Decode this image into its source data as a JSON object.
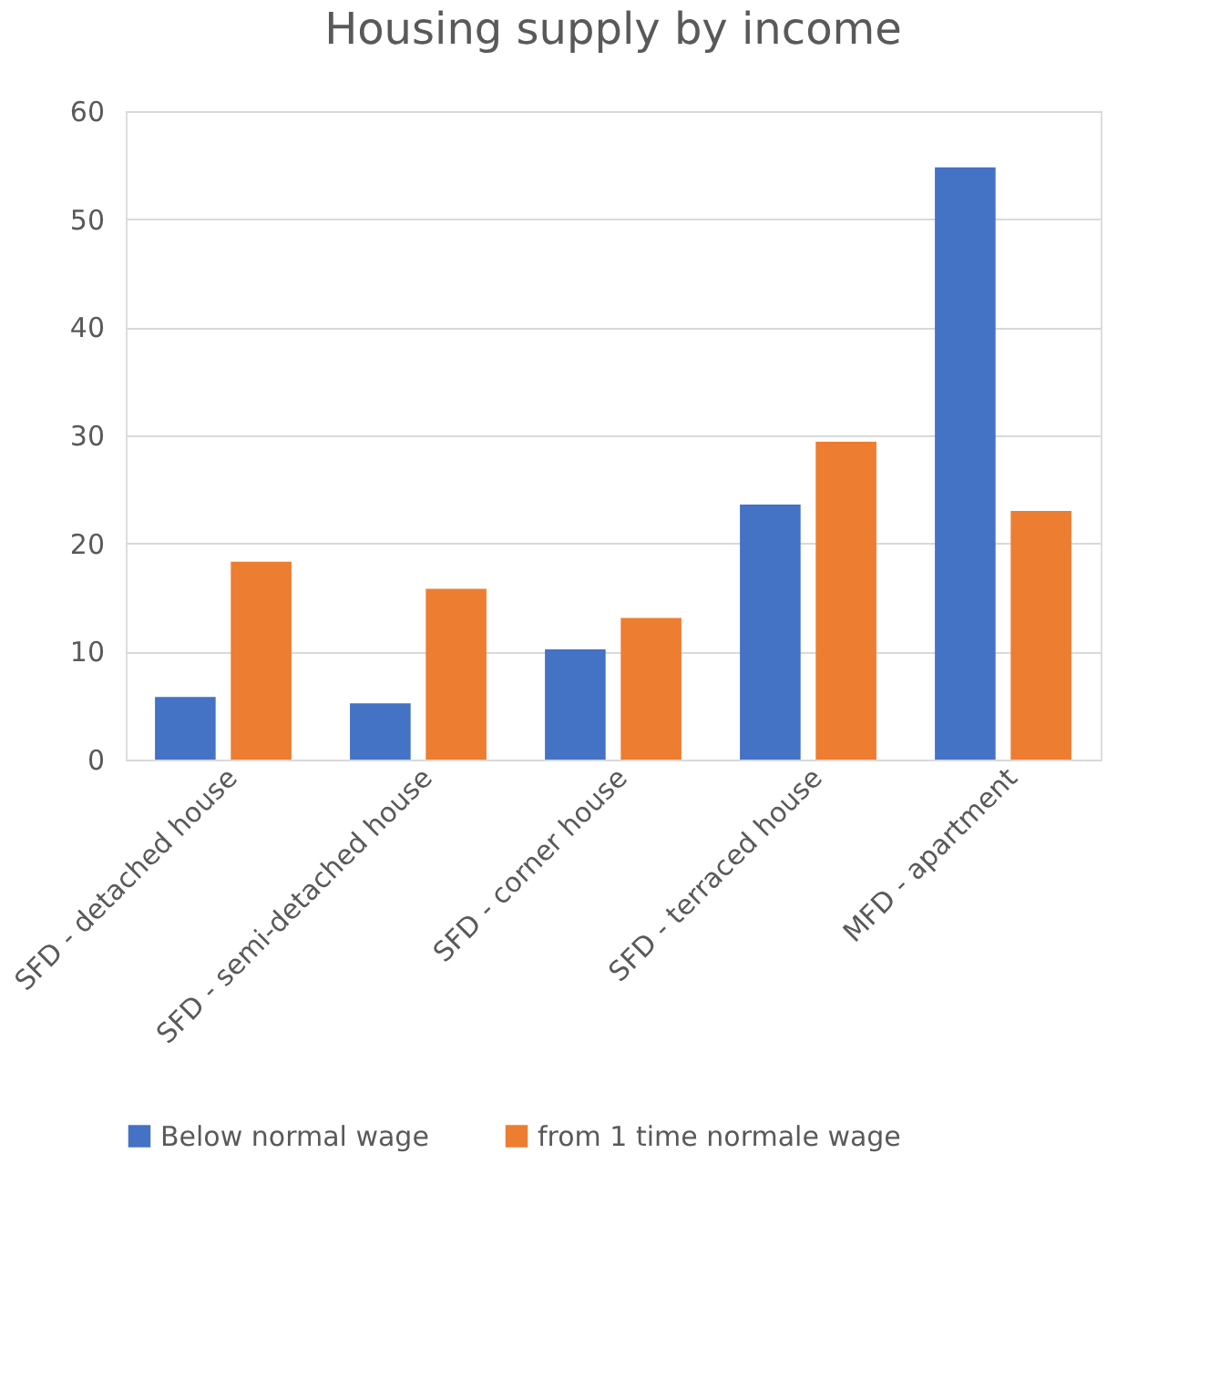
{
  "chart_data": {
    "type": "bar",
    "title": "Housing supply by income",
    "categories": [
      "SFD - detached house",
      "SFD - semi-detached house",
      "SFD - corner house",
      "SFD - terraced house",
      "MFD - apartment"
    ],
    "series": [
      {
        "name": "Below normal wage",
        "color": "#4472c4",
        "values": [
          5.8,
          5.2,
          10.2,
          23.6,
          54.8
        ]
      },
      {
        "name": "from 1 time normale wage",
        "color": "#ed7d31",
        "values": [
          18.3,
          15.8,
          13.1,
          29.4,
          23.0
        ]
      }
    ],
    "ylim": [
      0,
      60
    ],
    "yticks": [
      0,
      10,
      20,
      30,
      40,
      50,
      60
    ],
    "grid": "y",
    "legend": "bottom"
  }
}
